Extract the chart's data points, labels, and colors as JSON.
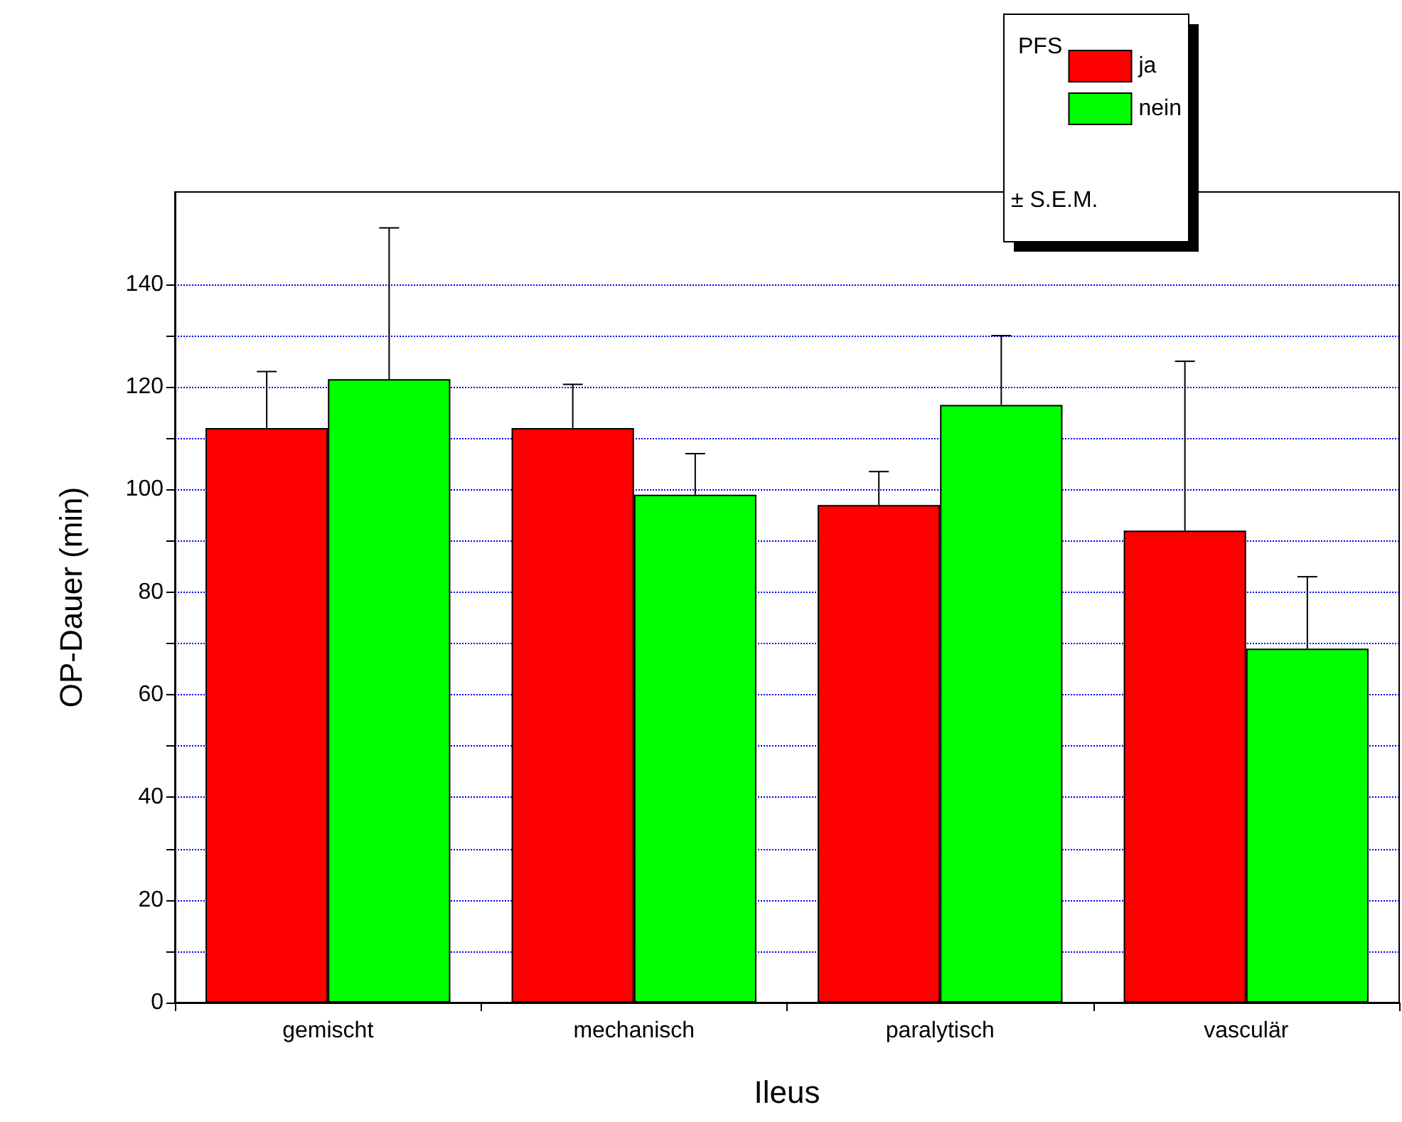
{
  "chart_data": {
    "type": "bar",
    "xlabel": "Ileus",
    "ylabel": "OP-Dauer (min)",
    "legend_title": "PFS",
    "annotations": [
      "± S.E.M."
    ],
    "categories": [
      "gemischt",
      "mechanisch",
      "paralytisch",
      "vasculär"
    ],
    "series": [
      {
        "name": "ja",
        "color": "#ff0000",
        "values": [
          112,
          112,
          97,
          92
        ],
        "errors": [
          [
            112,
            123
          ],
          [
            112,
            120.5
          ],
          [
            97,
            103.5
          ],
          [
            92,
            125
          ]
        ]
      },
      {
        "name": "nein",
        "color": "#00ff00",
        "values": [
          121.5,
          99,
          116.5,
          69
        ],
        "errors": [
          [
            121.5,
            151
          ],
          [
            99,
            107
          ],
          [
            116.5,
            130
          ],
          [
            69,
            83
          ]
        ]
      }
    ],
    "ylim": [
      0,
      158
    ],
    "yticks": [
      0,
      20,
      40,
      60,
      80,
      100,
      120,
      140
    ],
    "grid": "y",
    "legend": "top right"
  }
}
